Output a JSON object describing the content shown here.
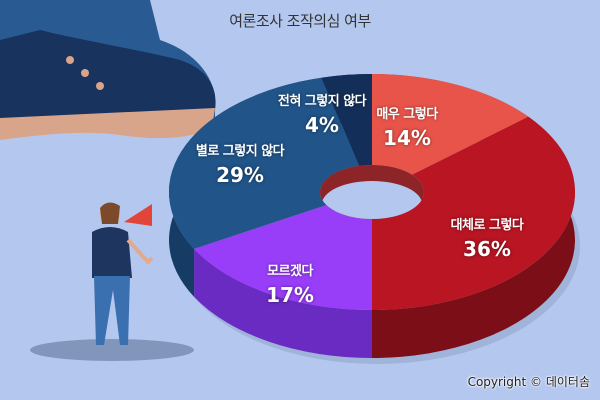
{
  "chart_data": {
    "type": "pie",
    "title": "여론조사 조작의심 여부",
    "style": "3d-donut",
    "start": "top",
    "direction": "clockwise",
    "slices": [
      {
        "label": "매우 그렇다",
        "value": 14,
        "value_label": "14%",
        "color": "#e8544a",
        "side_color": "#a8302a"
      },
      {
        "label": "대체로 그렇다",
        "value": 36,
        "value_label": "36%",
        "color": "#b91523",
        "side_color": "#7c0e18"
      },
      {
        "label": "모르겠다",
        "value": 17,
        "value_label": "17%",
        "color": "#993ef8",
        "side_color": "#6a2bc2"
      },
      {
        "label": "별로 그렇지 않다",
        "value": 29,
        "value_label": "29%",
        "color": "#215489",
        "side_color": "#163c66"
      },
      {
        "label": "전혀 그렇지 않다",
        "value": 4,
        "value_label": "4%",
        "color": "#132e58",
        "side_color": "#0c1f3e"
      }
    ]
  },
  "background_color": "#b4c8ef",
  "copyright": "Copyright © 데이터솜"
}
